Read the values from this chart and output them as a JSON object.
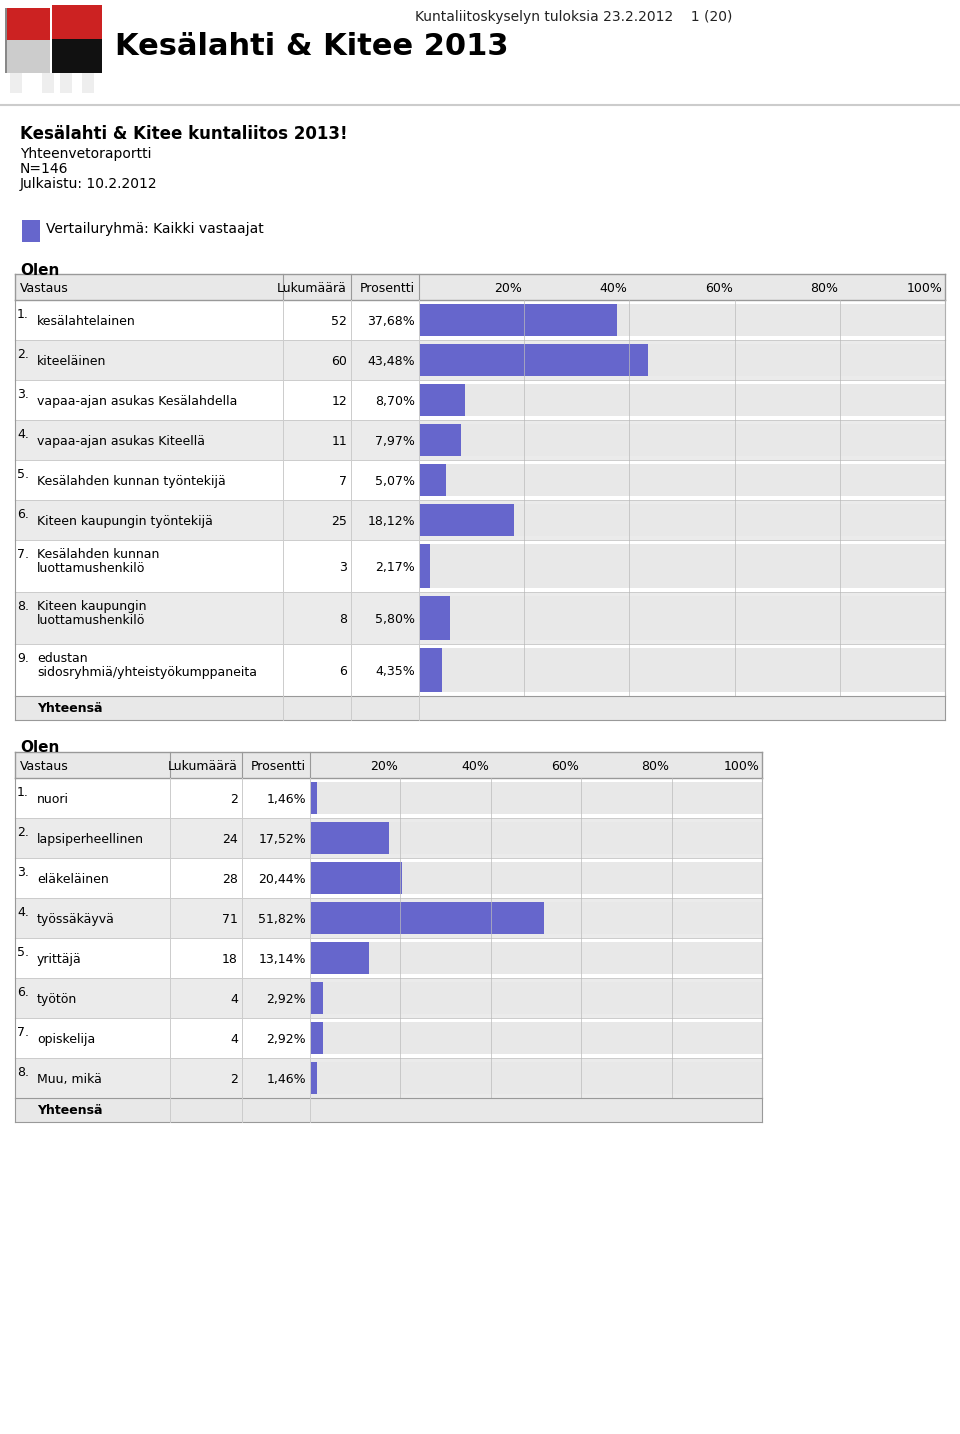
{
  "header_title": "Kesälahti & Kitee 2013",
  "header_subtitle": "Kuntaliitoskyselyn tuloksia 23.2.2012    1 (20)",
  "report_title": "Kesälahti & Kitee kuntaliitos 2013!",
  "comparison_group_label": "Vertailuryhmä: Kaikki vastaajat",
  "bar_color": "#6666cc",
  "legend_color": "#6666cc",
  "bg_color": "#ffffff",
  "table1_section": "Olen",
  "table1_rows": [
    {
      "num": "1.",
      "label": "kesälahtelainen",
      "count": 52,
      "pct": "37,68%",
      "bar": 37.68
    },
    {
      "num": "2.",
      "label": "kiteeläinen",
      "count": 60,
      "pct": "43,48%",
      "bar": 43.48
    },
    {
      "num": "3.",
      "label": "vapaa-ajan asukas Kesälahdella",
      "count": 12,
      "pct": "8,70%",
      "bar": 8.7
    },
    {
      "num": "4.",
      "label": "vapaa-ajan asukas Kiteellä",
      "count": 11,
      "pct": "7,97%",
      "bar": 7.97
    },
    {
      "num": "5.",
      "label": "Kesälahden kunnan työntekijä",
      "count": 7,
      "pct": "5,07%",
      "bar": 5.07
    },
    {
      "num": "6.",
      "label": "Kiteen kaupungin työntekijä",
      "count": 25,
      "pct": "18,12%",
      "bar": 18.12
    },
    {
      "num": "7.",
      "label_parts": [
        "Kesälahden kunnan",
        "luottamushenkilö"
      ],
      "count": 3,
      "pct": "2,17%",
      "bar": 2.17
    },
    {
      "num": "8.",
      "label_parts": [
        "Kiteen kaupungin",
        "luottamushenkilö"
      ],
      "count": 8,
      "pct": "5,80%",
      "bar": 5.8
    },
    {
      "num": "9.",
      "label_parts": [
        "edustan",
        "sidosryhmiä/yhteistyökumppaneita"
      ],
      "count": 6,
      "pct": "4,35%",
      "bar": 4.35
    }
  ],
  "table2_section": "Olen",
  "table2_rows": [
    {
      "num": "1.",
      "label": "nuori",
      "count": 2,
      "pct": "1,46%",
      "bar": 1.46
    },
    {
      "num": "2.",
      "label": "lapsiperheellinen",
      "count": 24,
      "pct": "17,52%",
      "bar": 17.52
    },
    {
      "num": "3.",
      "label": "eläkeläinen",
      "count": 28,
      "pct": "20,44%",
      "bar": 20.44
    },
    {
      "num": "4.",
      "label": "työssäkäyvä",
      "count": 71,
      "pct": "51,82%",
      "bar": 51.82
    },
    {
      "num": "5.",
      "label": "yrittäjä",
      "count": 18,
      "pct": "13,14%",
      "bar": 13.14
    },
    {
      "num": "6.",
      "label": "työtön",
      "count": 4,
      "pct": "2,92%",
      "bar": 2.92
    },
    {
      "num": "7.",
      "label": "opiskelija",
      "count": 4,
      "pct": "2,92%",
      "bar": 2.92
    },
    {
      "num": "8.",
      "label": "Muu, mikä",
      "count": 2,
      "pct": "1,46%",
      "bar": 1.46
    }
  ],
  "table_bg_even": "#ebebeb",
  "table_bg_odd": "#ffffff",
  "table_border_color": "#cccccc",
  "header_line_color": "#cccccc",
  "header_bg": "#e8e8e8"
}
